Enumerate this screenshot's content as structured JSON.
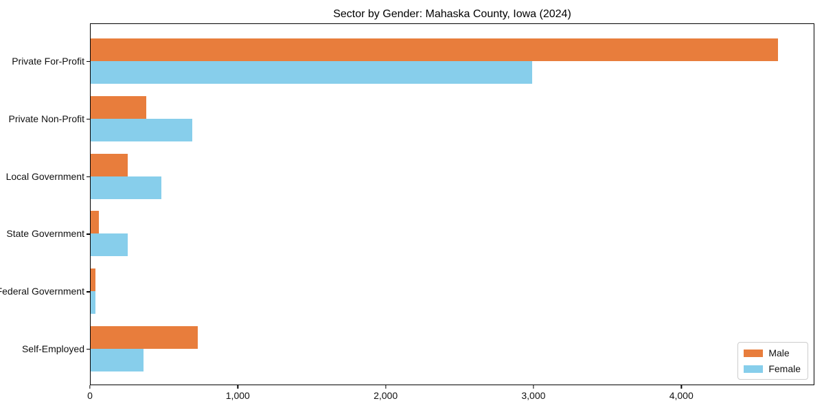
{
  "chart_data": {
    "type": "bar",
    "orientation": "horizontal",
    "title": "Sector by Gender: Mahaska County, Iowa (2024)",
    "categories": [
      "Private For-Profit",
      "Private Non-Profit",
      "Local Government",
      "State Government",
      "Federal Government",
      "Self-Employed"
    ],
    "series": [
      {
        "name": "Male",
        "color": "#e87d3c",
        "values": [
          4660,
          375,
          251,
          57,
          34,
          726
        ]
      },
      {
        "name": "Female",
        "color": "#87ceeb",
        "values": [
          2990,
          687,
          480,
          249,
          31,
          360
        ]
      }
    ],
    "xlabel": "",
    "ylabel": "",
    "xlim": [
      0,
      4900
    ],
    "xticks": [
      0,
      1000,
      2000,
      3000,
      4000
    ],
    "xtick_labels": [
      "0",
      "1,000",
      "2,000",
      "3,000",
      "4,000"
    ],
    "grid": false,
    "legend_position": "lower right",
    "colors": {
      "axis": "#000000",
      "text": "#111111",
      "background": "#ffffff",
      "legend_border": "#cccccc"
    }
  }
}
